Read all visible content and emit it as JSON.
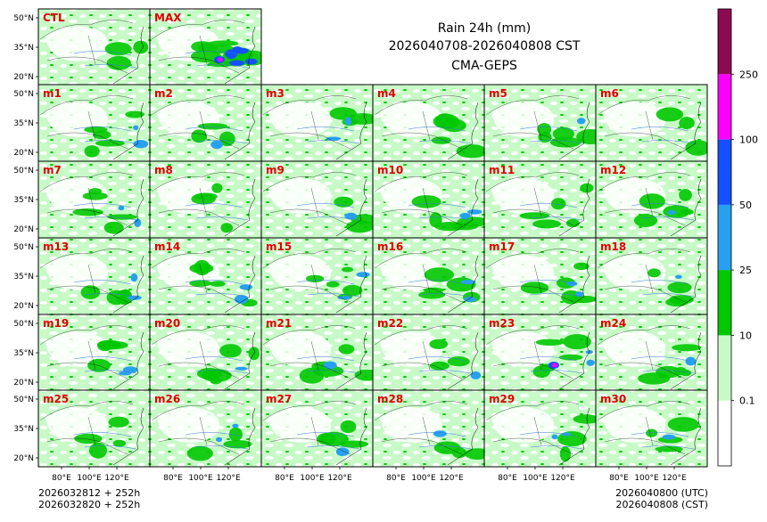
{
  "title": {
    "line1": "Rain 24h (mm)",
    "line2": "2026040708-2026040808 CST",
    "line3": "CMA-GEPS"
  },
  "chart_data": {
    "type": "heatmap",
    "variable": "24h accumulated precipitation",
    "units": "mm",
    "panels": [
      "CTL",
      "MAX",
      "m1",
      "m2",
      "m3",
      "m4",
      "m5",
      "m6",
      "m7",
      "m8",
      "m9",
      "m10",
      "m11",
      "m12",
      "m13",
      "m14",
      "m15",
      "m16",
      "m17",
      "m18",
      "m19",
      "m20",
      "m21",
      "m22",
      "m23",
      "m24",
      "m25",
      "m26",
      "m27",
      "m28",
      "m29",
      "m30"
    ],
    "x_ticks": [
      "80°E",
      "100°E",
      "120°E"
    ],
    "y_ticks": [
      "50°N",
      "35°N",
      "20°N"
    ],
    "colorbar": {
      "levels": [
        0.1,
        10,
        25,
        50,
        100,
        250
      ],
      "tick_labels": [
        "0.1",
        "10",
        "25",
        "50",
        "100",
        "250"
      ],
      "colors": [
        "#ffffff",
        "#c8fac8",
        "#00c800",
        "#28a0f0",
        "#1450ff",
        "#ff00ff",
        "#8c0a50"
      ]
    }
  },
  "footer": {
    "left_line1": "2026032812 + 252h",
    "left_line2": "2026032820 + 252h",
    "right_line1": "2026040800 (UTC)",
    "right_line2": "2026040808 (CST)"
  }
}
